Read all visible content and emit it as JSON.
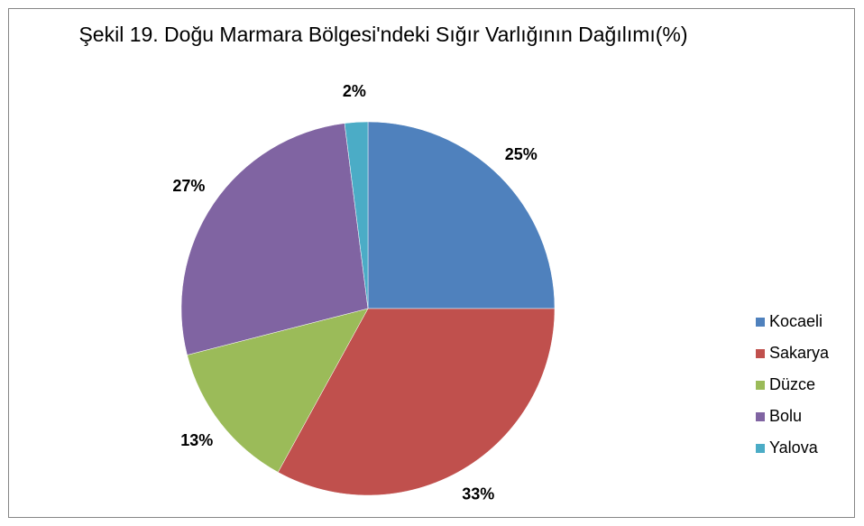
{
  "chart_data": {
    "type": "pie",
    "title": "Şekil 19. Doğu Marmara Bölgesi'ndeki Sığır Varlığının Dağılımı(%)",
    "categories": [
      "Kocaeli",
      "Sakarya",
      "Düzce",
      "Bolu",
      "Yalova"
    ],
    "values": [
      25,
      33,
      13,
      27,
      2
    ],
    "value_labels": [
      "25%",
      "33%",
      "13%",
      "27%",
      "2%"
    ],
    "colors": [
      "#4f81bd",
      "#c0504d",
      "#9bbb59",
      "#8064a2",
      "#4bacc6"
    ],
    "legend": "right"
  }
}
